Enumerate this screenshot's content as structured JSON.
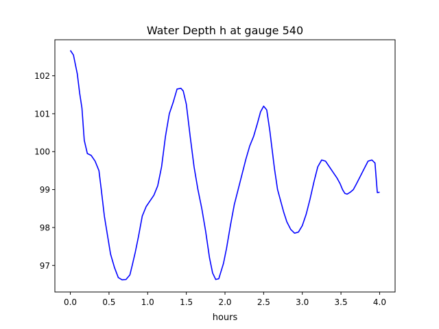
{
  "chart_data": {
    "type": "line",
    "title": "Water Depth h at gauge 540",
    "xlabel": "hours",
    "ylabel": "",
    "xlim": [
      -0.2,
      4.2
    ],
    "ylim": [
      96.3,
      102.95
    ],
    "xticks": [
      0.0,
      0.5,
      1.0,
      1.5,
      2.0,
      2.5,
      3.0,
      3.5,
      4.0
    ],
    "xtick_labels": [
      "0.0",
      "0.5",
      "1.0",
      "1.5",
      "2.0",
      "2.5",
      "3.0",
      "3.5",
      "4.0"
    ],
    "yticks": [
      97,
      98,
      99,
      100,
      101,
      102
    ],
    "ytick_labels": [
      "97",
      "98",
      "99",
      "100",
      "101",
      "102"
    ],
    "grid": false,
    "series": [
      {
        "color": "#0000ff",
        "x": [
          0.0,
          0.04,
          0.09,
          0.12,
          0.15,
          0.18,
          0.22,
          0.27,
          0.32,
          0.37,
          0.4,
          0.44,
          0.48,
          0.52,
          0.57,
          0.62,
          0.67,
          0.72,
          0.77,
          0.8,
          0.84,
          0.88,
          0.93,
          0.98,
          1.03,
          1.08,
          1.13,
          1.18,
          1.23,
          1.28,
          1.33,
          1.38,
          1.43,
          1.46,
          1.5,
          1.55,
          1.6,
          1.65,
          1.7,
          1.75,
          1.8,
          1.84,
          1.88,
          1.92,
          1.95,
          1.98,
          2.02,
          2.07,
          2.12,
          2.17,
          2.22,
          2.27,
          2.32,
          2.37,
          2.42,
          2.46,
          2.5,
          2.54,
          2.58,
          2.61,
          2.64,
          2.68,
          2.72,
          2.76,
          2.8,
          2.85,
          2.9,
          2.95,
          3.0,
          3.05,
          3.1,
          3.15,
          3.2,
          3.25,
          3.3,
          3.35,
          3.4,
          3.45,
          3.49,
          3.52,
          3.55,
          3.58,
          3.62,
          3.66,
          3.7,
          3.75,
          3.8,
          3.85,
          3.9,
          3.94,
          3.97,
          4.0
        ],
        "y": [
          102.67,
          102.55,
          102.05,
          101.55,
          101.15,
          100.3,
          99.95,
          99.9,
          99.75,
          99.5,
          99.0,
          98.3,
          97.8,
          97.3,
          96.95,
          96.68,
          96.62,
          96.63,
          96.75,
          97.0,
          97.35,
          97.75,
          98.3,
          98.55,
          98.7,
          98.85,
          99.1,
          99.6,
          100.4,
          101.0,
          101.3,
          101.65,
          101.67,
          101.6,
          101.25,
          100.4,
          99.6,
          99.0,
          98.5,
          97.9,
          97.2,
          96.8,
          96.63,
          96.65,
          96.85,
          97.05,
          97.45,
          98.05,
          98.6,
          99.0,
          99.4,
          99.8,
          100.15,
          100.4,
          100.75,
          101.05,
          101.2,
          101.1,
          100.55,
          100.05,
          99.55,
          99.0,
          98.7,
          98.4,
          98.15,
          97.95,
          97.85,
          97.88,
          98.05,
          98.35,
          98.75,
          99.2,
          99.6,
          99.78,
          99.75,
          99.6,
          99.45,
          99.3,
          99.15,
          99.0,
          98.9,
          98.88,
          98.93,
          99.0,
          99.15,
          99.35,
          99.55,
          99.75,
          99.78,
          99.7,
          98.92,
          98.93
        ],
        "note_order": "sorted"
      }
    ]
  }
}
